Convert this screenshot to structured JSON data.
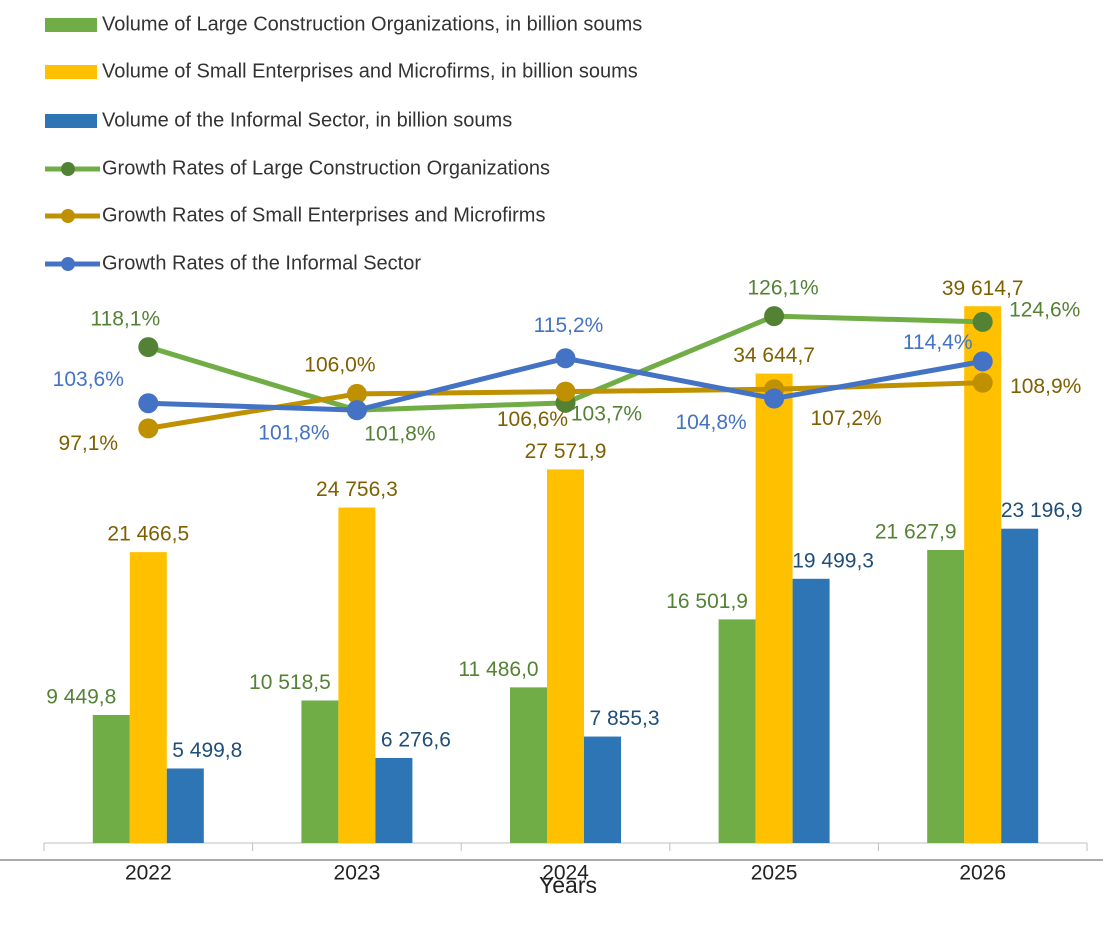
{
  "chart_data": {
    "type": "bar",
    "x_label": "Years",
    "categories": [
      "2022",
      "2023",
      "2024",
      "2025",
      "2026"
    ],
    "ylim": [
      0,
      40000
    ],
    "y2lim": [
      -10,
      130
    ],
    "series": [
      {
        "name": "Volume of Large Construction Organizations, in billion soums",
        "type": "bar",
        "color": "#70ad47",
        "label_color": "#548235",
        "values": [
          9449.8,
          10518.5,
          11486.0,
          16501.9,
          21627.9
        ],
        "value_labels": [
          "9 449,8",
          "10 518,5",
          "11 486,0",
          "16 501,9",
          "21 627,9"
        ]
      },
      {
        "name": "Volume of Small Enterprises and Microfirms, in billion soums",
        "type": "bar",
        "color": "#ffc000",
        "label_color": "#7f6000",
        "values": [
          21466.5,
          24756.3,
          27571.9,
          34644.7,
          39614.7
        ],
        "value_labels": [
          "21 466,5",
          "24 756,3",
          "27 571,9",
          "34 644,7",
          "39 614,7"
        ]
      },
      {
        "name": "Volume of the Informal Sector, in billion soums",
        "type": "bar",
        "color": "#2e75b6",
        "label_color": "#1f4e79",
        "values": [
          5499.8,
          6276.6,
          7855.3,
          19499.3,
          23196.9
        ],
        "value_labels": [
          "5 499,8",
          "6 276,6",
          "7 855,3",
          "19 499,3",
          "23 196,9"
        ]
      },
      {
        "name": "Growth Rates of Large Construction Organizations",
        "type": "line",
        "axis": "y2",
        "color": "#70ad47",
        "marker_color": "#548235",
        "label_color": "#548235",
        "values": [
          118.1,
          101.8,
          103.7,
          126.1,
          124.6
        ],
        "value_labels": [
          "118,1%",
          "101,8%",
          "103,7%",
          "126,1%",
          "124,6%"
        ]
      },
      {
        "name": "Growth Rates of Small Enterprises and Microfirms",
        "type": "line",
        "axis": "y2",
        "color": "#bf9000",
        "marker_color": "#bf9000",
        "label_color": "#7f6000",
        "values": [
          97.1,
          106.0,
          106.6,
          107.2,
          108.9
        ],
        "value_labels": [
          "97,1%",
          "106,0%",
          "106,6%",
          "107,2%",
          "108,9%"
        ]
      },
      {
        "name": "Growth Rates of the Informal Sector",
        "type": "line",
        "axis": "y2",
        "color": "#4472c4",
        "marker_color": "#4472c4",
        "label_color": "#4472c4",
        "values": [
          103.6,
          101.8,
          115.2,
          104.8,
          114.4
        ],
        "value_labels": [
          "103,6%",
          "101,8%",
          "115,2%",
          "104,8%",
          "114,4%"
        ]
      }
    ]
  }
}
